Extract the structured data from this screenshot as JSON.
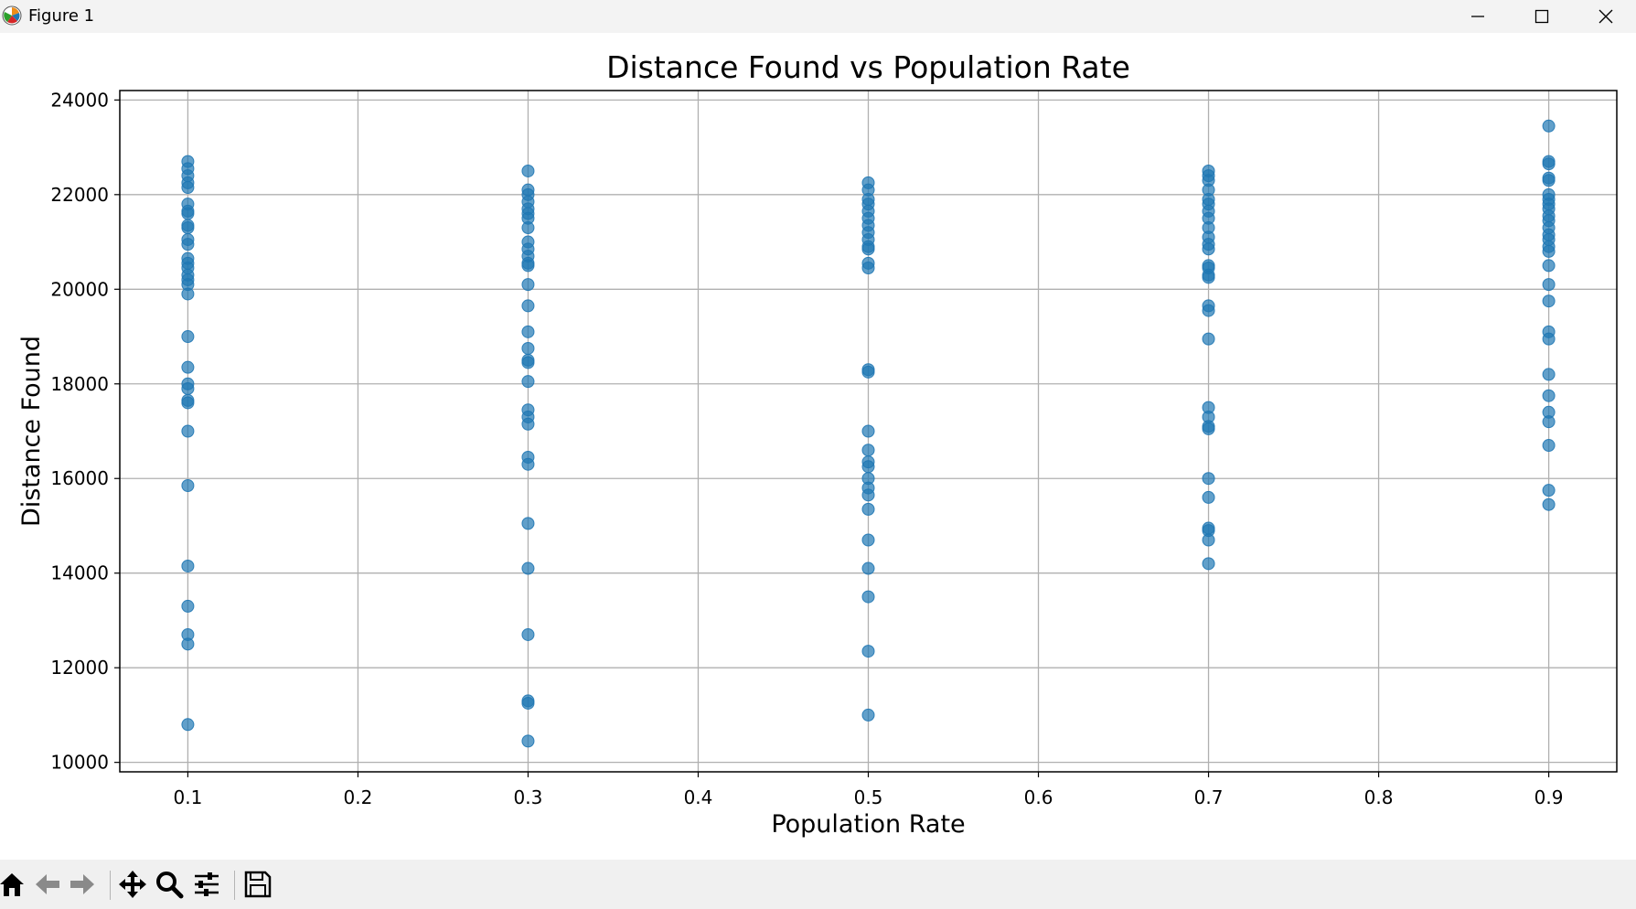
{
  "window": {
    "title": "Figure 1",
    "icon": "matplotlib-logo-icon",
    "controls": [
      "minimize-icon",
      "maximize-icon",
      "close-icon"
    ]
  },
  "toolbar": {
    "buttons": [
      "home-icon",
      "back-arrow-icon",
      "forward-arrow-icon",
      "pan-icon",
      "zoom-icon",
      "configure-subplots-icon",
      "save-icon"
    ]
  },
  "colors": {
    "marker": "#1f77b4",
    "grid": "#b0b0b0",
    "toolbar_bg": "#f0f0f0",
    "titlebar_bg": "#f3f3f3"
  },
  "chart_data": {
    "type": "scatter",
    "title": "Distance Found vs Population Rate",
    "xlabel": "Population Rate",
    "ylabel": "Distance Found",
    "xlim": [
      0.06,
      0.94
    ],
    "ylim": [
      9800,
      24200
    ],
    "xticks": [
      0.1,
      0.2,
      0.3,
      0.4,
      0.5,
      0.6,
      0.7,
      0.8,
      0.9
    ],
    "xtick_labels": [
      "0.1",
      "0.2",
      "0.3",
      "0.4",
      "0.5",
      "0.6",
      "0.7",
      "0.8",
      "0.9"
    ],
    "yticks": [
      10000,
      12000,
      14000,
      16000,
      18000,
      20000,
      22000,
      24000
    ],
    "ytick_labels": [
      "10000",
      "12000",
      "14000",
      "16000",
      "18000",
      "20000",
      "22000",
      "24000"
    ],
    "grid": true,
    "marker_alpha": 0.7,
    "points": [
      {
        "x": 0.1,
        "y": [
          22700,
          22550,
          22400,
          22250,
          22150,
          21800,
          21650,
          21600,
          21350,
          21300,
          21050,
          20950,
          20650,
          20550,
          20450,
          20300,
          20200,
          20100,
          19900,
          19000,
          18350,
          18000,
          17900,
          17650,
          17600,
          17000,
          15850,
          14150,
          13300,
          12700,
          12500,
          10800
        ]
      },
      {
        "x": 0.3,
        "y": [
          22500,
          22100,
          22000,
          21850,
          21700,
          21600,
          21500,
          21300,
          21000,
          20850,
          20700,
          20550,
          20500,
          20100,
          19650,
          19100,
          18750,
          18500,
          18450,
          18050,
          17450,
          17300,
          17150,
          16450,
          16300,
          15050,
          14100,
          12700,
          11300,
          11250,
          10450
        ]
      },
      {
        "x": 0.5,
        "y": [
          22250,
          22100,
          21900,
          21800,
          21650,
          21500,
          21350,
          21200,
          21050,
          20900,
          20850,
          20550,
          20450,
          18300,
          18250,
          17000,
          16600,
          16350,
          16250,
          16000,
          15800,
          15650,
          15350,
          14700,
          14100,
          13500,
          12350,
          11000
        ]
      },
      {
        "x": 0.7,
        "y": [
          22500,
          22400,
          22300,
          22100,
          21900,
          21800,
          21650,
          21500,
          21300,
          21100,
          20950,
          20850,
          20500,
          20450,
          20300,
          20250,
          19650,
          19550,
          18950,
          17500,
          17300,
          17100,
          17050,
          16000,
          15600,
          14950,
          14900,
          14700,
          14200
        ]
      },
      {
        "x": 0.9,
        "y": [
          23450,
          22700,
          22650,
          22350,
          22300,
          22000,
          21900,
          21800,
          21700,
          21550,
          21450,
          21300,
          21150,
          21050,
          20900,
          20800,
          20500,
          20100,
          19750,
          19100,
          18950,
          18200,
          17750,
          17400,
          17200,
          16700,
          15750,
          15450
        ]
      }
    ]
  }
}
